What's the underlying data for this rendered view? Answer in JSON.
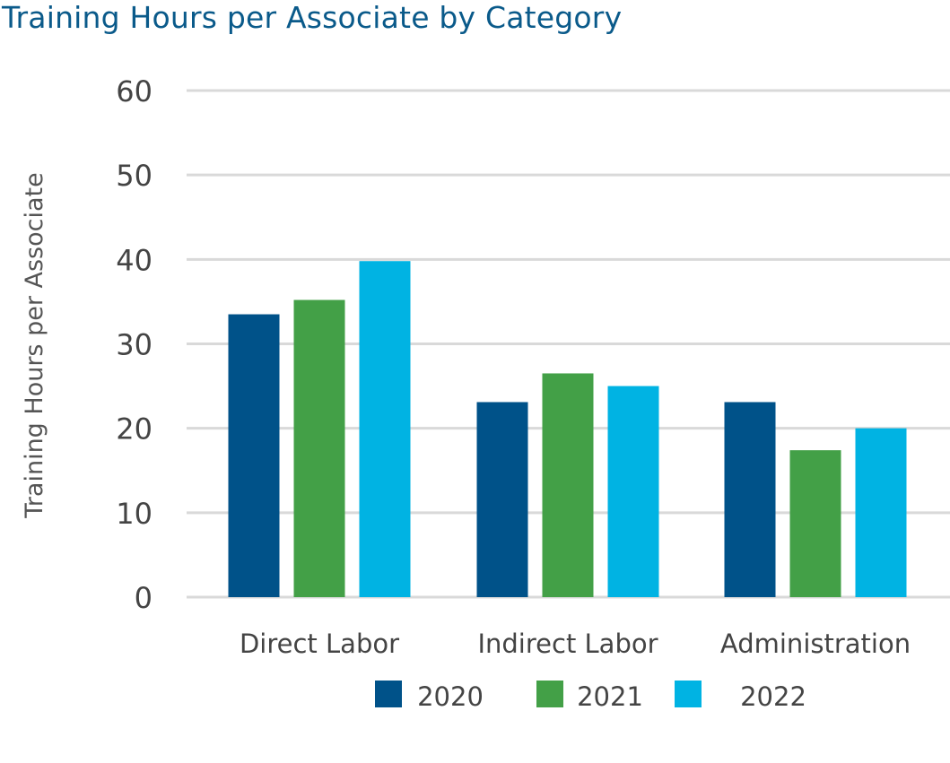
{
  "chart_data": {
    "type": "bar",
    "title": "Training Hours per  Associate by Category",
    "ylabel": "Training Hours per Associate",
    "xlabel": "",
    "ylim": [
      0,
      60
    ],
    "yticks": [
      0,
      10,
      20,
      30,
      40,
      50,
      60
    ],
    "grid": true,
    "legend_position": "bottom",
    "categories": [
      "Direct Labor",
      "Indirect Labor",
      "Administration"
    ],
    "series": [
      {
        "name": "2020",
        "color": "#005289",
        "values": [
          33.5,
          23.1,
          23.1
        ]
      },
      {
        "name": "2021",
        "color": "#43a047",
        "values": [
          35.2,
          26.5,
          17.4
        ]
      },
      {
        "name": "2022",
        "color": "#00b3e3",
        "values": [
          39.8,
          25.0,
          20.0
        ]
      }
    ]
  }
}
